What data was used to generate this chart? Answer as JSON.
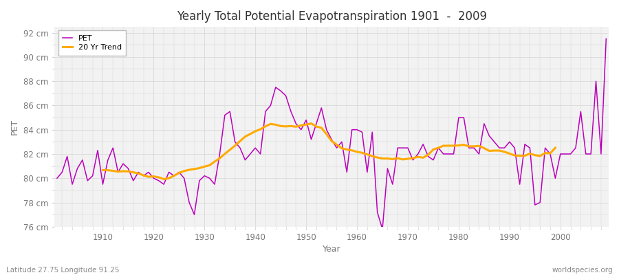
{
  "title": "Yearly Total Potential Evapotranspiration 1901  -  2009",
  "xlabel": "Year",
  "ylabel": "PET",
  "bottom_left": "Latitude 27.75 Longitude 91.25",
  "bottom_right": "worldspecies.org",
  "ylim": [
    76,
    92.5
  ],
  "yticks": [
    76,
    78,
    80,
    82,
    84,
    86,
    88,
    90,
    92
  ],
  "ytick_labels": [
    "76 cm",
    "78 cm",
    "80 cm",
    "82 cm",
    "84 cm",
    "86 cm",
    "88 cm",
    "90 cm",
    "92 cm"
  ],
  "pet_color": "#bb00bb",
  "trend_color": "#ffaa00",
  "bg_color": "#ebebeb",
  "plot_bg_color": "#f2f2f2",
  "grid_color": "#d5d5d5",
  "legend_labels": [
    "PET",
    "20 Yr Trend"
  ],
  "years": [
    1901,
    1902,
    1903,
    1904,
    1905,
    1906,
    1907,
    1908,
    1909,
    1910,
    1911,
    1912,
    1913,
    1914,
    1915,
    1916,
    1917,
    1918,
    1919,
    1920,
    1921,
    1922,
    1923,
    1924,
    1925,
    1926,
    1927,
    1928,
    1929,
    1930,
    1931,
    1932,
    1933,
    1934,
    1935,
    1936,
    1937,
    1938,
    1939,
    1940,
    1941,
    1942,
    1943,
    1944,
    1945,
    1946,
    1947,
    1948,
    1949,
    1950,
    1951,
    1952,
    1953,
    1954,
    1955,
    1956,
    1957,
    1958,
    1959,
    1960,
    1961,
    1962,
    1963,
    1964,
    1965,
    1966,
    1967,
    1968,
    1969,
    1970,
    1971,
    1972,
    1973,
    1974,
    1975,
    1976,
    1977,
    1978,
    1979,
    1980,
    1981,
    1982,
    1983,
    1984,
    1985,
    1986,
    1987,
    1988,
    1989,
    1990,
    1991,
    1992,
    1993,
    1994,
    1995,
    1996,
    1997,
    1998,
    1999,
    2000,
    2001,
    2002,
    2003,
    2004,
    2005,
    2006,
    2007,
    2008,
    2009
  ],
  "pet_values": [
    80.0,
    80.5,
    81.8,
    79.5,
    80.8,
    81.5,
    79.8,
    80.2,
    82.3,
    79.5,
    81.5,
    82.5,
    80.5,
    81.2,
    80.8,
    79.8,
    80.5,
    80.2,
    80.5,
    80.0,
    79.8,
    79.5,
    80.5,
    80.2,
    80.5,
    80.0,
    78.0,
    77.0,
    79.8,
    80.2,
    80.0,
    79.5,
    82.0,
    85.2,
    85.5,
    83.0,
    82.5,
    81.5,
    82.0,
    82.5,
    82.0,
    85.5,
    86.0,
    87.5,
    87.2,
    86.8,
    85.5,
    84.5,
    84.0,
    84.8,
    83.2,
    84.5,
    85.8,
    84.0,
    83.2,
    82.5,
    83.0,
    80.5,
    84.0,
    84.0,
    83.8,
    80.5,
    83.8,
    77.2,
    75.8,
    80.8,
    79.5,
    82.5,
    82.5,
    82.5,
    81.5,
    82.0,
    82.8,
    81.8,
    81.5,
    82.5,
    82.0,
    82.0,
    82.0,
    85.0,
    85.0,
    82.5,
    82.5,
    82.0,
    84.5,
    83.5,
    83.0,
    82.5,
    82.5,
    83.0,
    82.5,
    79.5,
    82.8,
    82.5,
    77.8,
    78.0,
    82.5,
    82.0,
    80.0,
    82.0,
    82.0,
    82.0,
    82.5,
    85.5,
    82.0,
    82.0,
    88.0,
    82.0,
    91.5
  ]
}
